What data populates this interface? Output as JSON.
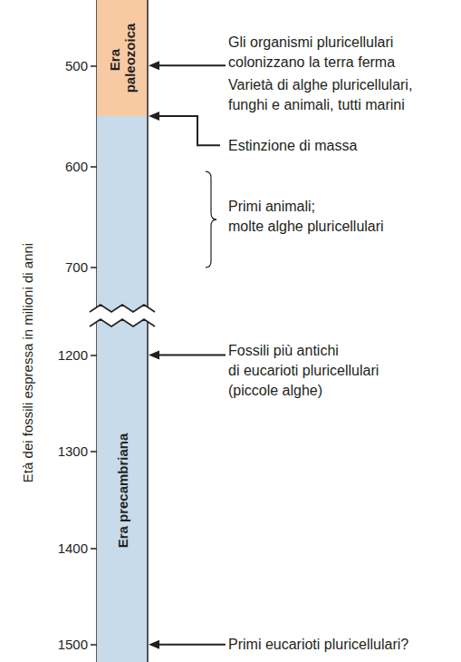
{
  "chart_data": {
    "type": "timeline",
    "y_label": "Età dei fossili espressa in milioni di anni",
    "grid": false,
    "segments": [
      {
        "ylim": [
          435,
          745
        ],
        "yticks": [
          500,
          600,
          700
        ]
      },
      {
        "ylim": [
          1163,
          1518
        ],
        "yticks": [
          1200,
          1300,
          1400,
          1500
        ]
      }
    ],
    "eras": [
      {
        "label": "Era paleozoica",
        "start": 435,
        "end": 550,
        "color": "#f7caa4"
      },
      {
        "label": "Era precambriana",
        "start": 550,
        "end": 1518,
        "color": "#c7dbea"
      }
    ],
    "events": [
      {
        "marker": "arrow",
        "value": 500,
        "text_value": 487,
        "lines": [
          "Gli organismi pluricellulari",
          "colonizzano la terra ferma"
        ]
      },
      {
        "marker": "none",
        "text_value": 529,
        "lines": [
          "Varietà di alghe pluricellulari,",
          "funghi e animali, tutti marini"
        ]
      },
      {
        "marker": "elbow",
        "value": 550,
        "text_value": 579,
        "lines": [
          "Estinzione di massa"
        ]
      },
      {
        "marker": "brace",
        "values": [
          605,
          700
        ],
        "text_value": 649,
        "lines": [
          "Primi animali;",
          "molte alghe pluricellulari"
        ]
      },
      {
        "marker": "arrow",
        "value": 1200,
        "text_value": 1216,
        "lines": [
          "Fossili più antichi",
          "di eucarioti pluricellulari",
          "(piccole alghe)"
        ]
      },
      {
        "marker": "arrow",
        "value": 1500,
        "text_value": 1500,
        "lines": [
          "Primi eucarioti pluricellulari?"
        ]
      }
    ]
  }
}
